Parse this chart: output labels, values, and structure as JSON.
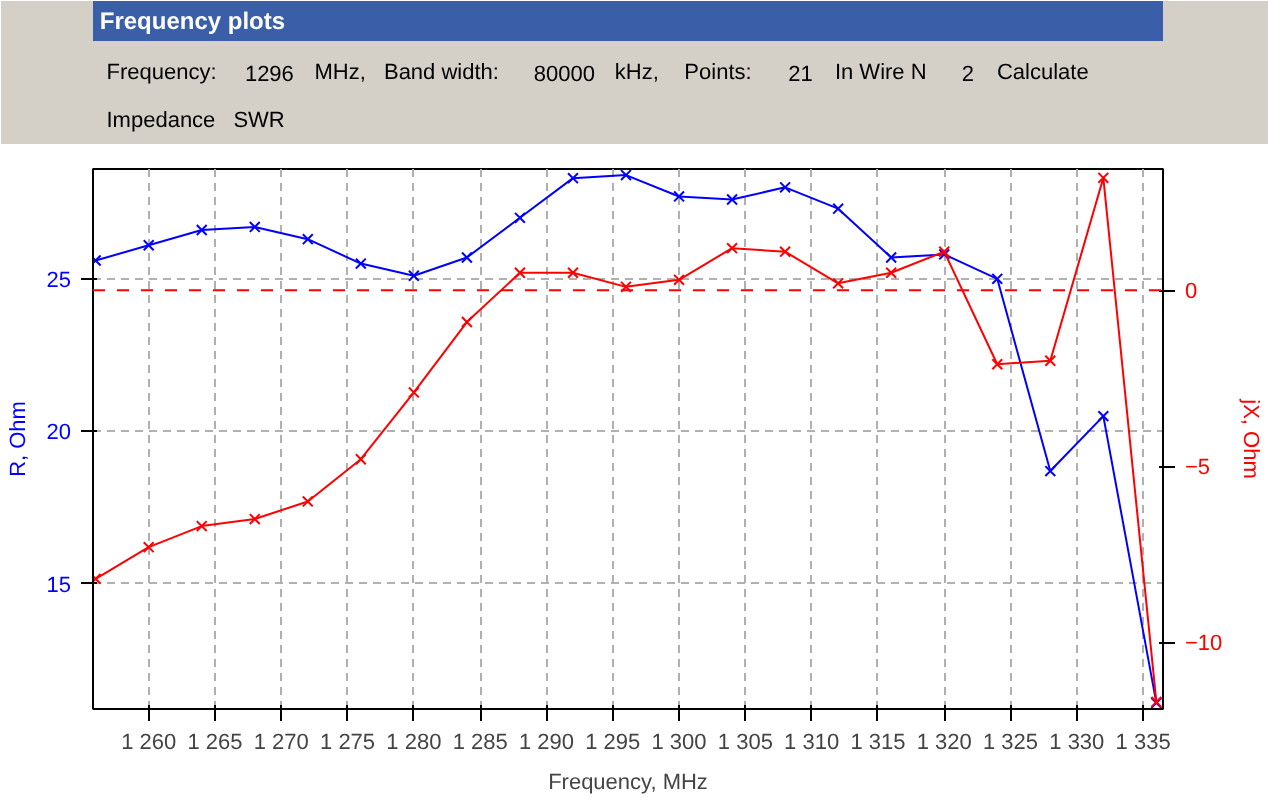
{
  "chart_data": {
    "type": "line",
    "title": "Frequency plots",
    "annotations": [
      "Frequency:",
      "1296",
      "MHz,",
      "Band width:",
      "80000",
      "kHz,",
      "Points:",
      "21",
      "In Wire N",
      "2",
      "Calculate",
      "Impedance",
      "SWR"
    ],
    "xlabel": "Frequency, MHz",
    "ylabel": "R, Ohm",
    "y2label": "jX, Ohm",
    "x": [
      1256,
      1260,
      1264,
      1268,
      1272,
      1276,
      1280,
      1284,
      1288,
      1292,
      1296,
      1300,
      1304,
      1308,
      1312,
      1316,
      1320,
      1324,
      1328,
      1332,
      1336
    ],
    "series": [
      {
        "color": "#0000ff",
        "values": [
          25.6,
          26.1,
          26.6,
          26.7,
          26.3,
          25.5,
          25.1,
          25.7,
          27.0,
          28.3,
          28.4,
          27.7,
          27.6,
          28.0,
          27.3,
          25.7,
          25.8,
          25.0,
          18.7,
          20.5,
          11.1
        ]
      },
      {
        "color": "#ff0000",
        "axis": "y2",
        "values": [
          -8.2,
          -7.3,
          -6.7,
          -6.5,
          -6.0,
          -4.8,
          -2.9,
          -0.9,
          0.5,
          0.5,
          0.1,
          0.3,
          1.2,
          1.1,
          0.2,
          0.5,
          1.1,
          -2.1,
          -2.0,
          3.2,
          -11.7
        ]
      }
    ],
    "xlim": [
      1255.8,
      1336.5
    ],
    "xticks": [
      {
        "value": 1260,
        "label": "1 260"
      },
      {
        "value": 1265,
        "label": "1 265"
      },
      {
        "value": 1270,
        "label": "1 270"
      },
      {
        "value": 1275,
        "label": "1 275"
      },
      {
        "value": 1280,
        "label": "1 280"
      },
      {
        "value": 1285,
        "label": "1 285"
      },
      {
        "value": 1290,
        "label": "1 290"
      },
      {
        "value": 1295,
        "label": "1 295"
      },
      {
        "value": 1300,
        "label": "1 300"
      },
      {
        "value": 1305,
        "label": "1 305"
      },
      {
        "value": 1310,
        "label": "1 310"
      },
      {
        "value": 1315,
        "label": "1 315"
      },
      {
        "value": 1320,
        "label": "1 320"
      },
      {
        "value": 1325,
        "label": "1 325"
      },
      {
        "value": 1330,
        "label": "1 330"
      },
      {
        "value": 1335,
        "label": "1 335"
      }
    ],
    "ylim": [
      10.9,
      28.6
    ],
    "yticks": [
      15,
      20,
      25
    ],
    "y2lim": [
      -11.9,
      3.45
    ],
    "y2ticks": [
      -10,
      -5,
      0
    ],
    "ref_lines": [
      {
        "axis": "y2",
        "value": 0,
        "color": "#ff0000",
        "line_style": "dashed"
      }
    ],
    "grid": true,
    "marker": "cross",
    "line_style": "solid"
  }
}
